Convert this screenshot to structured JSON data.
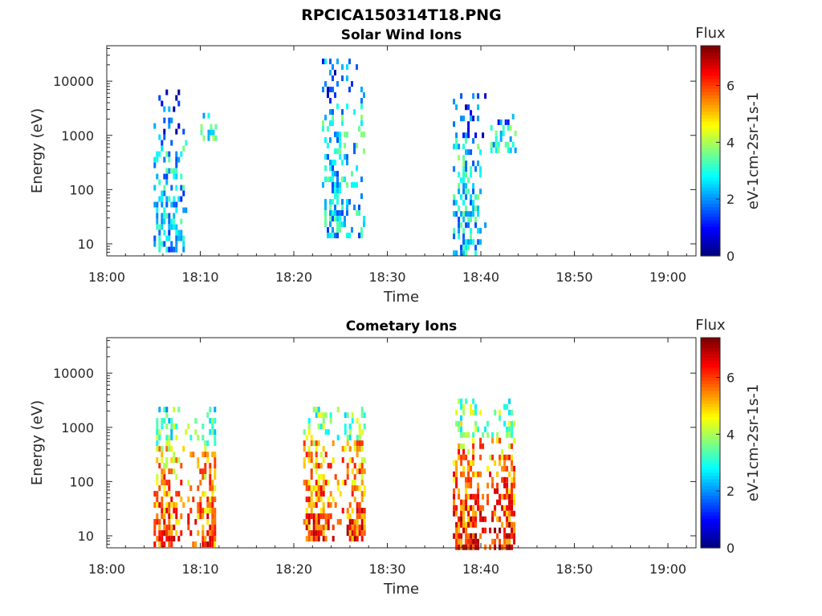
{
  "figure_title": "RPCICA150314T18.PNG",
  "chart_data": [
    {
      "type": "heatmap",
      "title": "Solar Wind Ions",
      "xlabel": "Time",
      "ylabel": "Energy (eV)",
      "x_ticks": [
        "18:00",
        "18:10",
        "18:20",
        "18:30",
        "18:40",
        "18:50",
        "19:00"
      ],
      "xlim": [
        "18:00",
        "19:03"
      ],
      "y_scale": "log",
      "y_ticks": [
        10,
        100,
        1000,
        10000
      ],
      "ylim": [
        6,
        45000
      ],
      "colorbar": {
        "label": "Flux",
        "units": "eV-1cm-2sr-1s-1",
        "range": [
          0,
          7.4
        ],
        "ticks": [
          0,
          2,
          4,
          6
        ]
      },
      "bursts": [
        {
          "start": "18:05",
          "end": "18:08",
          "emin": 7,
          "emax": 7000,
          "intensity": 2.6
        },
        {
          "start": "18:10",
          "end": "18:11",
          "emin": 900,
          "emax": 2600,
          "intensity": 3.2
        },
        {
          "start": "18:23",
          "end": "18:27",
          "emin": 14,
          "emax": 26000,
          "intensity": 2.8
        },
        {
          "start": "18:37",
          "end": "18:40",
          "emin": 6,
          "emax": 6000,
          "intensity": 2.8
        },
        {
          "start": "18:41",
          "end": "18:43",
          "emin": 500,
          "emax": 2500,
          "intensity": 3.2
        }
      ]
    },
    {
      "type": "heatmap",
      "title": "Cometary Ions",
      "xlabel": "Time",
      "ylabel": "Energy (eV)",
      "x_ticks": [
        "18:00",
        "18:10",
        "18:20",
        "18:30",
        "18:40",
        "18:50",
        "19:00"
      ],
      "xlim": [
        "18:00",
        "19:03"
      ],
      "y_scale": "log",
      "y_ticks": [
        10,
        100,
        1000,
        10000
      ],
      "ylim": [
        6,
        45000
      ],
      "colorbar": {
        "label": "Flux",
        "units": "eV-1cm-2sr-1s-1",
        "range": [
          0,
          7.4
        ],
        "ticks": [
          0,
          2,
          4,
          6
        ]
      },
      "bursts": [
        {
          "start": "18:05",
          "end": "18:11",
          "emin": 7,
          "emax": 2400,
          "intensity": 4.8
        },
        {
          "start": "18:21",
          "end": "18:27",
          "emin": 8,
          "emax": 2400,
          "intensity": 5.0
        },
        {
          "start": "18:37",
          "end": "18:43",
          "emin": 6,
          "emax": 3400,
          "intensity": 5.2
        }
      ]
    }
  ]
}
